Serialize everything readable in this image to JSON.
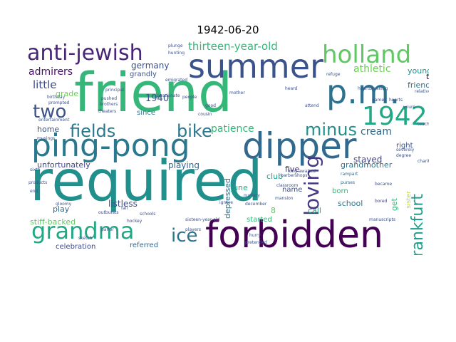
{
  "title": "1942-06-20",
  "words": {
    "required": {
      "text": "required",
      "color": "#21908d"
    },
    "friend": {
      "text": "friend",
      "color": "#35b779"
    },
    "forbidden": {
      "text": "forbidden",
      "color": "#440154"
    },
    "ping_pong": {
      "text": "ping-pong",
      "color": "#2a788e"
    },
    "dipper": {
      "text": "dipper",
      "color": "#31688e"
    },
    "summer": {
      "text": "summer",
      "color": "#3b528b"
    },
    "pm": {
      "text": "p.m.",
      "color": "#2c728e"
    },
    "holland": {
      "text": "holland",
      "color": "#5ec962"
    },
    "grandma": {
      "text": "grandma",
      "color": "#22a884"
    },
    "anti_jewish": {
      "text": "anti-jewish",
      "color": "#482576"
    },
    "n1942": {
      "text": "1942",
      "color": "#22a884"
    },
    "loving": {
      "text": "loving",
      "color": "#443983"
    },
    "two": {
      "text": "two",
      "color": "#3b528b"
    },
    "fields": {
      "text": "fields",
      "color": "#2a788e"
    },
    "bike": {
      "text": "bike",
      "color": "#2a788e"
    },
    "minus": {
      "text": "minus",
      "color": "#21908d"
    },
    "ice": {
      "text": "ice",
      "color": "#2c728e"
    },
    "frankfurt": {
      "text": "frankfurt",
      "color": "#1f9e89"
    },
    "thirteen": {
      "text": "thirteen-year-old",
      "color": "#35b779"
    },
    "admirers": {
      "text": "admirers",
      "color": "#471365"
    },
    "germany": {
      "text": "germany",
      "color": "#3b528b"
    },
    "athletic": {
      "text": "athletic",
      "color": "#6ece58"
    },
    "little": {
      "text": "little",
      "color": "#3e4a89"
    },
    "patience": {
      "text": "patience",
      "color": "#35b779"
    },
    "cream": {
      "text": "cream",
      "color": "#31688e"
    },
    "n1940": {
      "text": "1940",
      "color": "#3b528b"
    },
    "grandly": {
      "text": "grandly",
      "color": "#3b528b"
    },
    "friends": {
      "text": "friends",
      "color": "#2c728e"
    },
    "young": {
      "text": "young",
      "color": "#21908d"
    },
    "grade": {
      "text": "grade",
      "color": "#6ece58"
    },
    "since": {
      "text": "since",
      "color": "#2a788e"
    },
    "stayed": {
      "text": "stayed",
      "color": "#414487"
    },
    "right": {
      "text": "right",
      "color": "#3b528b"
    },
    "try": {
      "text": "try",
      "color": "#440154"
    },
    "home": {
      "text": "home",
      "color": "#3b528b"
    },
    "unfortunately": {
      "text": "unfortunately",
      "color": "#414487"
    },
    "playing": {
      "text": "playing",
      "color": "#31688e"
    },
    "grandmother": {
      "text": "grandmother",
      "color": "#2c728e"
    },
    "five": {
      "text": "five",
      "color": "#482576"
    },
    "club": {
      "text": "club",
      "color": "#1f9e89"
    },
    "june": {
      "text": "june",
      "color": "#22a884"
    },
    "name": {
      "text": "name",
      "color": "#3b528b"
    },
    "born": {
      "text": "born",
      "color": "#35b779"
    },
    "play": {
      "text": "play",
      "color": "#31688e"
    },
    "depressed": {
      "text": "depressed",
      "color": "#2c728e"
    },
    "n8": {
      "text": "8",
      "color": "#5ec962"
    },
    "school": {
      "text": "school",
      "color": "#2a788e"
    },
    "get": {
      "text": "get",
      "color": "#35b779"
    },
    "call": {
      "text": "call",
      "color": "#22a884"
    },
    "listless": {
      "text": "listless",
      "color": "#3e4a89"
    },
    "started": {
      "text": "started",
      "color": "#35b779"
    },
    "stiff_backed": {
      "text": "stiff-backed",
      "color": "#5ec962"
    },
    "celebration": {
      "text": "celebration",
      "color": "#3e4a89"
    },
    "referred": {
      "text": "referred",
      "color": "#31688e"
    },
    "sister": {
      "text": "sister",
      "color": "#b5de2b"
    },
    "barbershops": {
      "text": "barbershops",
      "color": "#3b528b"
    },
    "nursery": {
      "text": "nursery",
      "color": "#3b528b"
    },
    "hockey": {
      "text": "hockey",
      "color": "#3e4a89"
    },
    "classroom": {
      "text": "classroom",
      "color": "#3b528b"
    },
    "musings": {
      "text": "musings",
      "color": "#3b528b"
    },
    "outbursts": {
      "text": "outbursts",
      "color": "#3e4a89"
    },
    "became": {
      "text": "became",
      "color": "#3b528b"
    },
    "gloomy": {
      "text": "gloomy",
      "color": "#3b528b"
    },
    "bored": {
      "text": "bored",
      "color": "#414487"
    },
    "rampart": {
      "text": "rampart",
      "color": "#31688e"
    },
    "purses": {
      "text": "purses",
      "color": "#31688e"
    },
    "players": {
      "text": "players",
      "color": "#3b528b"
    },
    "hurry": {
      "text": "hurry",
      "color": "#3b528b"
    },
    "december": {
      "text": "december",
      "color": "#3b528b"
    },
    "pretended": {
      "text": "pretended",
      "color": "#3b528b"
    },
    "sixteen": {
      "text": "sixteen-year-old",
      "color": "#3b528b"
    },
    "schools": {
      "text": "schools",
      "color": "#3b528b"
    },
    "ignore": {
      "text": "ignore",
      "color": "#3b528b"
    },
    "attend": {
      "text": "attend",
      "color": "#3b528b"
    },
    "entertainment": {
      "text": "entertainment",
      "color": "#3b528b"
    },
    "theaters": {
      "text": "theaters",
      "color": "#3b528b"
    },
    "principal": {
      "text": "principal",
      "color": "#3b528b"
    },
    "emigrated": {
      "text": "emigrated",
      "color": "#3b528b"
    },
    "plunge": {
      "text": "plunge",
      "color": "#3b528b"
    },
    "hunting": {
      "text": "hunting",
      "color": "#3b528b"
    },
    "pushed": {
      "text": "pushed",
      "color": "#3b528b"
    },
    "teachers": {
      "text": "teachers",
      "color": "#3b528b"
    },
    "brothers": {
      "text": "brothers",
      "color": "#3b528b"
    },
    "birthday": {
      "text": "birthday",
      "color": "#3b528b"
    },
    "prompted": {
      "text": "prompted",
      "color": "#3b528b"
    },
    "refuge": {
      "text": "refuge",
      "color": "#3b528b"
    },
    "games": {
      "text": "games",
      "color": "#3b528b"
    },
    "hearts": {
      "text": "hearts",
      "color": "#3b528b"
    },
    "heartbreaking": {
      "text": "heartbreaking",
      "color": "#3b528b"
    },
    "yours": {
      "text": "yours",
      "color": "#3b528b"
    },
    "parlor": {
      "text": "parlor",
      "color": "#3b528b"
    },
    "sketch": {
      "text": "sketch",
      "color": "#3b528b"
    },
    "passionate": {
      "text": "passionate",
      "color": "#3b528b"
    },
    "mansion": {
      "text": "mansion",
      "color": "#3b528b"
    },
    "manuscripts": {
      "text": "manuscripts",
      "color": "#3b528b"
    },
    "severely": {
      "text": "severely",
      "color": "#3b528b"
    },
    "degree": {
      "text": "degree",
      "color": "#3b528b"
    },
    "charity": {
      "text": "charity",
      "color": "#3b528b"
    },
    "products": {
      "text": "products",
      "color": "#3b528b"
    },
    "sixth": {
      "text": "sixth",
      "color": "#3b528b"
    },
    "end": {
      "text": "end",
      "color": "#3b528b"
    },
    "mother": {
      "text": "mother",
      "color": "#3b528b"
    },
    "people": {
      "text": "people",
      "color": "#3b528b"
    },
    "fall": {
      "text": "fall",
      "color": "#3b528b"
    },
    "good": {
      "text": "good",
      "color": "#3b528b"
    },
    "cousin": {
      "text": "cousin",
      "color": "#3b528b"
    },
    "heard": {
      "text": "heard",
      "color": "#3b528b"
    },
    "relatives": {
      "text": "relatives",
      "color": "#3b528b"
    },
    "long_awaited": {
      "text": "long-awaited",
      "color": "#3b528b"
    }
  }
}
